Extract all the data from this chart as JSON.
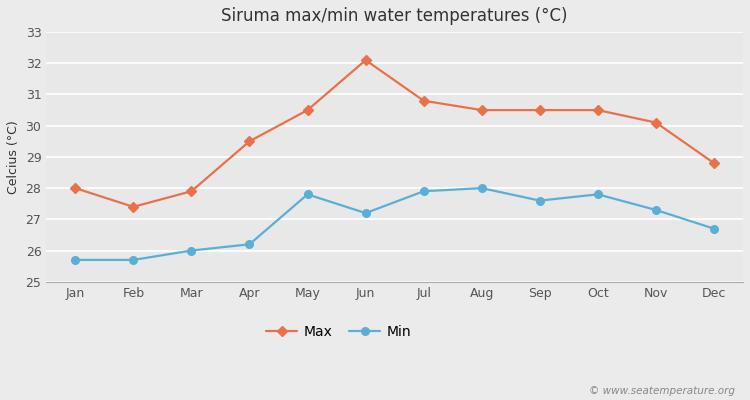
{
  "title": "Siruma max/min water temperatures (°C)",
  "ylabel": "Celcius (°C)",
  "months": [
    "Jan",
    "Feb",
    "Mar",
    "Apr",
    "May",
    "Jun",
    "Jul",
    "Aug",
    "Sep",
    "Oct",
    "Nov",
    "Dec"
  ],
  "max_values": [
    28.0,
    27.4,
    27.9,
    29.5,
    30.5,
    32.1,
    30.8,
    30.5,
    30.5,
    30.5,
    30.1,
    28.8
  ],
  "min_values": [
    25.7,
    25.7,
    26.0,
    26.2,
    27.8,
    27.2,
    27.9,
    28.0,
    27.6,
    27.8,
    27.3,
    26.7
  ],
  "max_color": "#e8714a",
  "min_color": "#5bafd6",
  "background_color": "#ebebeb",
  "plot_bg_color": "#e8e8e8",
  "ylim": [
    25,
    33
  ],
  "yticks": [
    25,
    26,
    27,
    28,
    29,
    30,
    31,
    32,
    33
  ],
  "grid_color": "#ffffff",
  "watermark": "© www.seatemperature.org",
  "legend_labels": [
    "Max",
    "Min"
  ]
}
